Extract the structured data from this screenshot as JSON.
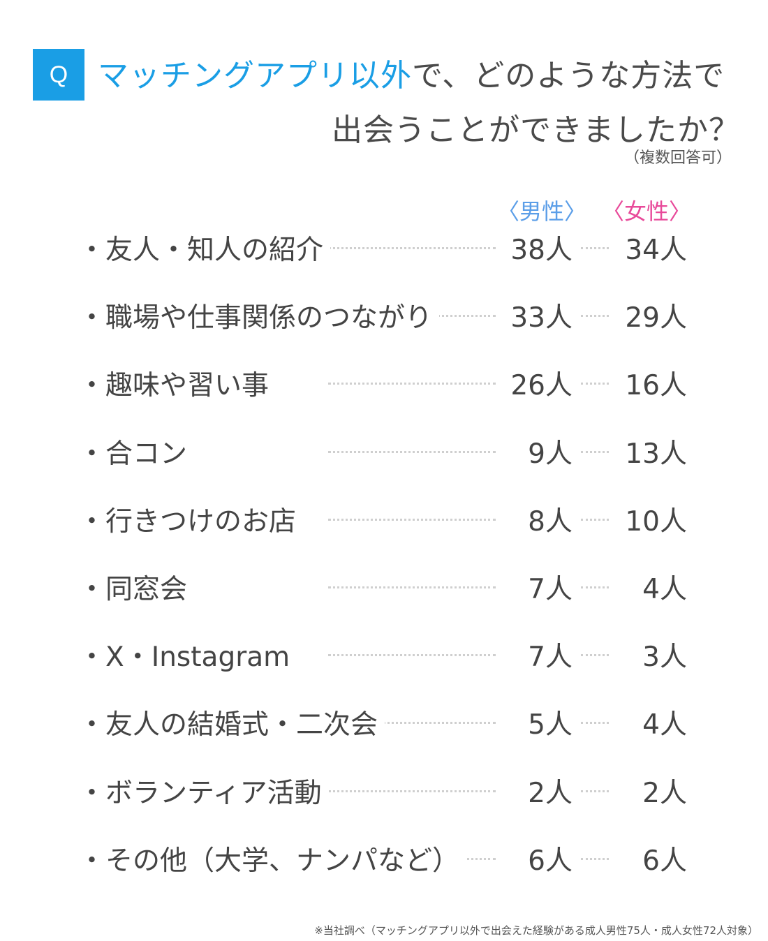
{
  "question": {
    "badge": "Q",
    "highlight": "マッチングアプリ以外",
    "rest_line1": "で、どのような方法で",
    "line2": "出会うことができましたか？",
    "note": "（複数回答可）"
  },
  "headers": {
    "male": "〈男性〉",
    "female": "〈女性〉"
  },
  "colors": {
    "accent": "#1a9ee5",
    "male": "#5b9ee8",
    "female": "#e84a9a",
    "text": "#444444"
  },
  "rows": [
    {
      "label": "・友人・知人の紹介",
      "male": "38人",
      "female": "34人"
    },
    {
      "label": "・職場や仕事関係のつながり",
      "male": "33人",
      "female": "29人"
    },
    {
      "label": "・趣味や習い事",
      "male": "26人",
      "female": "16人"
    },
    {
      "label": "・合コン",
      "male": "9人",
      "female": "13人"
    },
    {
      "label": "・行きつけのお店",
      "male": "8人",
      "female": "10人"
    },
    {
      "label": "・同窓会",
      "male": "7人",
      "female": "4人"
    },
    {
      "label": "・X・Instagram",
      "male": "7人",
      "female": "3人"
    },
    {
      "label": "・友人の結婚式・二次会",
      "male": "5人",
      "female": "4人"
    },
    {
      "label": "・ボランティア活動",
      "male": "2人",
      "female": "2人"
    },
    {
      "label": "・その他（大学、ナンパなど）",
      "male": "6人",
      "female": "6人"
    }
  ],
  "source": "※当社調べ（マッチングアプリ以外で出会えた経験がある成人男性75人・成人女性72人対象）"
}
